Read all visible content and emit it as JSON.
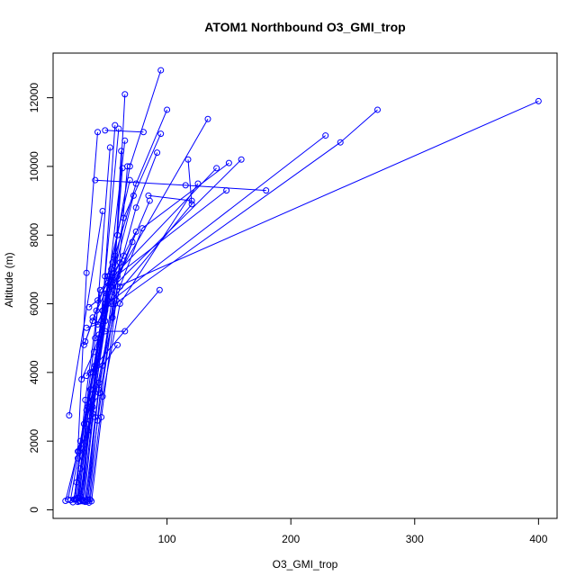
{
  "chart_data": {
    "type": "line",
    "title": "ATOM1 Northbound O3_GMI_trop",
    "xlabel": "O3_GMI_trop",
    "ylabel": "Altitude (m)",
    "xlim": [
      8,
      415
    ],
    "ylim": [
      -250,
      13300
    ],
    "x_ticks": [
      100,
      200,
      300,
      400
    ],
    "y_ticks": [
      0,
      2000,
      4000,
      6000,
      8000,
      10000,
      12000
    ],
    "grid": false,
    "legend": "none",
    "color": "#0000ff",
    "marker": "open-circle",
    "series": [
      {
        "x": [
          22,
          28,
          40,
          55,
          70,
          95
        ],
        "y": [
          280,
          1500,
          4000,
          7000,
          10000,
          12800
        ]
      },
      {
        "x": [
          25,
          30,
          42,
          58,
          75,
          100
        ],
        "y": [
          300,
          1800,
          4200,
          7400,
          9500,
          11650
        ]
      },
      {
        "x": [
          18,
          30,
          45,
          60,
          66
        ],
        "y": [
          260,
          2000,
          5000,
          8000,
          12100
        ]
      },
      {
        "x": [
          28,
          35,
          50,
          65,
          95
        ],
        "y": [
          350,
          2500,
          5500,
          8500,
          10950
        ]
      },
      {
        "x": [
          30,
          40,
          55,
          133
        ],
        "y": [
          400,
          3000,
          6500,
          11380
        ]
      },
      {
        "x": [
          35,
          45,
          60,
          75,
          92
        ],
        "y": [
          280,
          3500,
          6800,
          8800,
          10400
        ]
      },
      {
        "x": [
          24,
          30,
          40,
          50,
          61
        ],
        "y": [
          220,
          1200,
          3200,
          6800,
          11100
        ]
      },
      {
        "x": [
          20,
          28,
          35,
          44
        ],
        "y": [
          300,
          1700,
          6900,
          11000
        ]
      },
      {
        "x": [
          32,
          38,
          50,
          66
        ],
        "y": [
          250,
          3000,
          5800,
          10750
        ]
      },
      {
        "x": [
          34,
          42,
          55,
          64
        ],
        "y": [
          230,
          2700,
          6000,
          9950
        ]
      },
      {
        "x": [
          36,
          45,
          62,
          80,
          150
        ],
        "y": [
          250,
          3700,
          6500,
          8200,
          10100
        ]
      },
      {
        "x": [
          27,
          36,
          48,
          120,
          117
        ],
        "y": [
          300,
          3000,
          5800,
          8900,
          10200
        ]
      },
      {
        "x": [
          33,
          42,
          60,
          400
        ],
        "y": [
          250,
          3300,
          6500,
          11900
        ]
      },
      {
        "x": [
          37,
          46,
          58,
          240,
          270
        ],
        "y": [
          210,
          3400,
          6000,
          10700,
          11650
        ]
      },
      {
        "x": [
          31,
          40,
          52,
          228
        ],
        "y": [
          300,
          3200,
          6000,
          10900
        ]
      },
      {
        "x": [
          29,
          38,
          51,
          160
        ],
        "y": [
          250,
          3500,
          6300,
          10200
        ]
      },
      {
        "x": [
          26,
          34,
          46,
          140
        ],
        "y": [
          300,
          3200,
          6400,
          9950
        ]
      },
      {
        "x": [
          30,
          40,
          55,
          148
        ],
        "y": [
          260,
          3500,
          6700,
          9300
        ]
      },
      {
        "x": [
          38,
          48,
          62,
          125
        ],
        "y": [
          300,
          3300,
          6000,
          9500
        ]
      },
      {
        "x": [
          42,
          115,
          180
        ],
        "y": [
          9600,
          9450,
          9300
        ]
      },
      {
        "x": [
          85,
          120
        ],
        "y": [
          9150,
          9000
        ]
      },
      {
        "x": [
          35,
          94
        ],
        "y": [
          3900,
          6400
        ]
      },
      {
        "x": [
          32,
          40,
          52,
          86
        ],
        "y": [
          280,
          2800,
          6100,
          9000
        ]
      },
      {
        "x": [
          30,
          38,
          50,
          73
        ],
        "y": [
          250,
          2600,
          5900,
          9150
        ]
      },
      {
        "x": [
          28,
          36,
          48,
          58
        ],
        "y": [
          230,
          2300,
          5800,
          11200
        ]
      },
      {
        "x": [
          25,
          33,
          42,
          54
        ],
        "y": [
          300,
          2500,
          5000,
          10550
        ]
      },
      {
        "x": [
          21,
          48
        ],
        "y": [
          2750,
          8700
        ]
      },
      {
        "x": [
          40,
          50,
          66
        ],
        "y": [
          5600,
          5200,
          5200
        ]
      },
      {
        "x": [
          38,
          48,
          60
        ],
        "y": [
          4000,
          4200,
          4800
        ]
      },
      {
        "x": [
          50,
          81
        ],
        "y": [
          11050,
          11000
        ]
      },
      {
        "x": [
          34,
          40,
          52,
          70
        ],
        "y": [
          4900,
          5500,
          6800,
          9600
        ]
      },
      {
        "x": [
          36,
          44,
          56,
          63
        ],
        "y": [
          300,
          2600,
          5600,
          10450
        ]
      },
      {
        "x": [
          39,
          47,
          59,
          68
        ],
        "y": [
          250,
          2700,
          6100,
          10000
        ]
      },
      {
        "x": [
          33,
          43,
          62,
          75
        ],
        "y": [
          4800,
          5800,
          7200,
          8100
        ]
      },
      {
        "x": [
          31,
          41,
          55,
          72
        ],
        "y": [
          3800,
          4600,
          6200,
          7800
        ]
      },
      {
        "x": [
          29,
          37,
          47,
          56
        ],
        "y": [
          1700,
          3100,
          5500,
          7200
        ]
      },
      {
        "x": [
          27,
          35,
          45,
          53
        ],
        "y": [
          800,
          2900,
          5100,
          6800
        ]
      },
      {
        "x": [
          35,
          44,
          50,
          57
        ],
        "y": [
          5300,
          5400,
          6000,
          6900
        ]
      },
      {
        "x": [
          37,
          44,
          52,
          65
        ],
        "y": [
          5900,
          6100,
          6600,
          7400
        ]
      }
    ]
  }
}
